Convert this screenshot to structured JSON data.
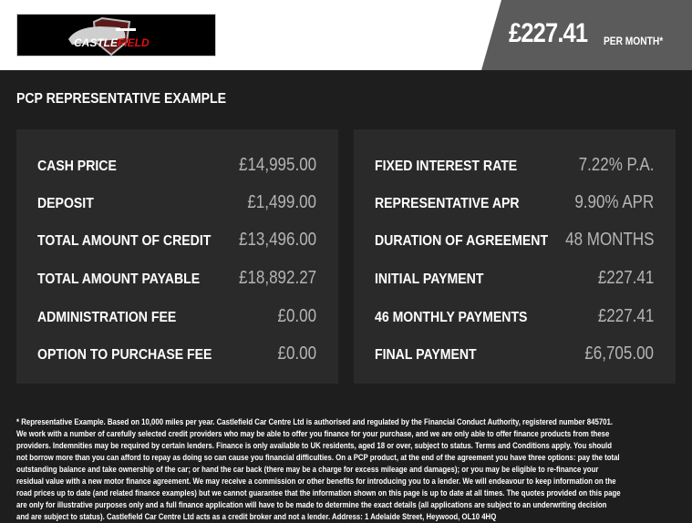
{
  "header": {
    "logo_text": "CASTLEFIELD CAR CENTRE",
    "monthly_price": "£227.41",
    "per_month_label": "PER MONTH*"
  },
  "section_title": "PCP REPRESENTATIVE EXAMPLE",
  "left_panel": [
    {
      "label": "CASH PRICE",
      "value": "£14,995.00"
    },
    {
      "label": "DEPOSIT",
      "value": "£1,499.00"
    },
    {
      "label": "TOTAL AMOUNT OF CREDIT",
      "value": "£13,496.00"
    },
    {
      "label": "TOTAL AMOUNT PAYABLE",
      "value": "£18,892.27"
    },
    {
      "label": "ADMINISTRATION FEE",
      "value": "£0.00"
    },
    {
      "label": "OPTION TO PURCHASE FEE",
      "value": "£0.00"
    }
  ],
  "right_panel": [
    {
      "label": "FIXED INTEREST RATE",
      "value": "7.22% P.A."
    },
    {
      "label": "REPRESENTATIVE APR",
      "value": "9.90% APR"
    },
    {
      "label": "DURATION OF AGREEMENT",
      "value": "48 MONTHS"
    },
    {
      "label": "INITIAL PAYMENT",
      "value": "£227.41"
    },
    {
      "label": "46 MONTHLY PAYMENTS",
      "value": "£227.41"
    },
    {
      "label": "FINAL PAYMENT",
      "value": "£6,705.00"
    }
  ],
  "disclaimer": "* Representative Example. Based on 10,000 miles per year. Castlefield Car Centre Ltd is authorised and regulated by the Financial Conduct Authority, registered number 845701. We work with a number of carefully selected credit providers who may be able to offer you finance for your purchase, and we are only able to offer finance products from these providers. Indemnities may be required by certain lenders. Finance is only available to UK residents, aged 18 or over, subject to status. Terms and Conditions apply. You should not borrow more than you can afford to repay as doing so can cause you financial difficulties. On a PCP product, at the end of the agreement you have three options: pay the total outstanding balance and take ownership of the car; or hand the car back (there may be a charge for excess mileage and damages); or you may be eligible to re-finance your residual value with a new motor finance agreement. We may receive a commission or other benefits for introducing you to a lender. We will endeavour to keep information on the road prices up to date (and related finance examples) but we cannot guarantee that the information shown on this page is up to date at all times. The quotes provided on this page are only for illustrative purposes only and a full finance application will have to be made to determine the exact details (all applications are subject to an underwriting decision and are subject to status). Castlefield Car Centre Ltd acts as a credit broker and not a lender. Address: 1 Adelaide Street, Heywood, OL10 4HQ"
}
